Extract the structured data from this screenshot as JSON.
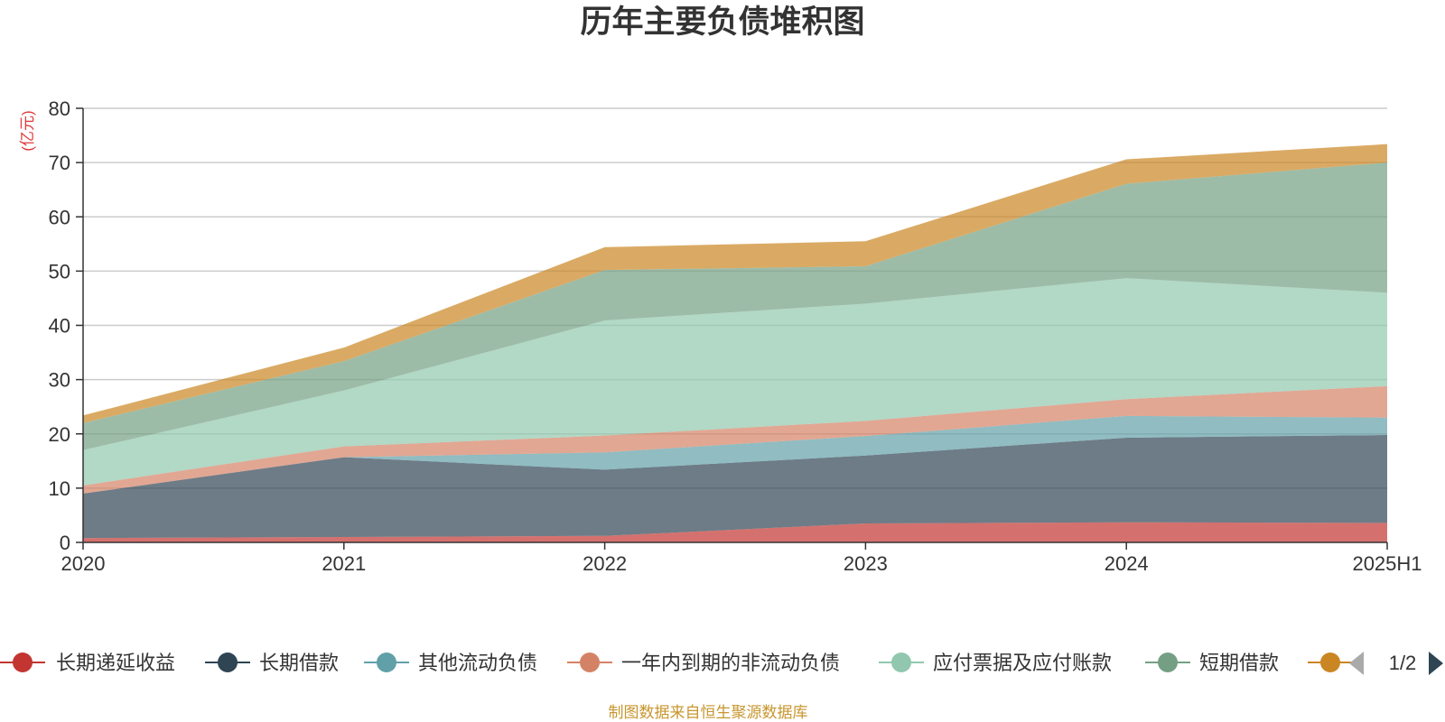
{
  "chart_data": {
    "type": "area",
    "stacked": true,
    "title": "历年主要负债堆积图",
    "ylabel": "(亿元)",
    "xlabel": "",
    "categories": [
      "2020",
      "2021",
      "2022",
      "2023",
      "2024",
      "2025H1"
    ],
    "ylim": [
      0,
      80
    ],
    "yticks": [
      0,
      10,
      20,
      30,
      40,
      50,
      60,
      70,
      80
    ],
    "grid": true,
    "series": [
      {
        "name": "长期递延收益",
        "color": "#c23531",
        "values": [
          0.8,
          1.0,
          1.2,
          3.5,
          3.7,
          3.6
        ]
      },
      {
        "name": "长期借款",
        "color": "#2f4554",
        "values": [
          8.2,
          14.7,
          12.2,
          12.5,
          15.6,
          16.2
        ]
      },
      {
        "name": "其他流动负债",
        "color": "#61a0a8",
        "values": [
          0.0,
          0.0,
          3.2,
          3.6,
          4.0,
          3.2
        ]
      },
      {
        "name": "一年内到期的非流动负债",
        "color": "#d48265",
        "values": [
          1.5,
          2.0,
          3.1,
          2.8,
          3.1,
          5.8
        ]
      },
      {
        "name": "应付票据及应付账款",
        "color": "#91c7ae",
        "values": [
          6.5,
          10.3,
          21.2,
          21.6,
          22.3,
          17.2
        ]
      },
      {
        "name": "短期借款",
        "color": "#749f83",
        "values": [
          5.0,
          5.4,
          9.3,
          6.9,
          17.4,
          24.0
        ]
      },
      {
        "name": "",
        "color": "#ca8622",
        "values": [
          1.4,
          2.5,
          4.2,
          4.6,
          4.5,
          3.4
        ]
      }
    ],
    "legend_position": "bottom",
    "legend_page": "1/2"
  },
  "footer": "制图数据来自恒生聚源数据库"
}
